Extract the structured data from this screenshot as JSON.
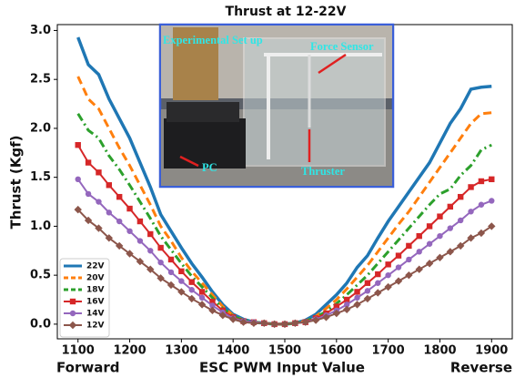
{
  "chart_data": {
    "type": "line",
    "title": "Thrust at 12-22V",
    "x_label": "ESC PWM Input Value",
    "y_label": "Thrust (Kgf)",
    "x_left_note": "Forward",
    "x_right_note": "Reverse",
    "inset_labels": [
      "Experimental Set up",
      "Force Sensor",
      "PC",
      "Thruster"
    ],
    "x": [
      1100,
      1120,
      1140,
      1160,
      1180,
      1200,
      1220,
      1240,
      1260,
      1280,
      1300,
      1320,
      1340,
      1360,
      1380,
      1400,
      1420,
      1440,
      1460,
      1480,
      1500,
      1520,
      1540,
      1560,
      1580,
      1600,
      1620,
      1640,
      1660,
      1680,
      1700,
      1720,
      1740,
      1760,
      1780,
      1800,
      1820,
      1840,
      1860,
      1880,
      1900
    ],
    "xlim": [
      1060,
      1940
    ],
    "ylim": [
      -0.15,
      3.06
    ],
    "xticks": [
      1100,
      1200,
      1300,
      1400,
      1500,
      1600,
      1700,
      1800,
      1900
    ],
    "yticks": [
      {
        "value": 0,
        "label": "0.0"
      },
      0.5,
      {
        "value": 1,
        "label": "1.0"
      },
      1.5,
      {
        "value": 2,
        "label": "2.0"
      },
      2.5,
      {
        "value": 3,
        "label": "3.0"
      }
    ],
    "grid": false,
    "legend": "lower left",
    "series": [
      {
        "name": "22V",
        "color": "#1f77b4",
        "dash": "solid",
        "marker": "none",
        "values": [
          2.93,
          2.65,
          2.55,
          2.3,
          2.1,
          1.9,
          1.65,
          1.4,
          1.12,
          0.95,
          0.78,
          0.62,
          0.48,
          0.33,
          0.2,
          0.1,
          0.05,
          0.02,
          0.01,
          0,
          0,
          0.01,
          0.04,
          0.1,
          0.2,
          0.3,
          0.42,
          0.58,
          0.7,
          0.88,
          1.05,
          1.2,
          1.35,
          1.5,
          1.65,
          1.85,
          2.05,
          2.2,
          2.4,
          2.42,
          2.43
        ]
      },
      {
        "name": "20V",
        "color": "#ff7f0e",
        "dash": "dashed",
        "marker": "none",
        "values": [
          2.53,
          2.3,
          2.2,
          2.0,
          1.8,
          1.62,
          1.42,
          1.22,
          1.0,
          0.85,
          0.68,
          0.54,
          0.42,
          0.3,
          0.18,
          0.09,
          0.04,
          0.02,
          0.01,
          0,
          0,
          0.01,
          0.03,
          0.08,
          0.16,
          0.25,
          0.36,
          0.48,
          0.6,
          0.74,
          0.88,
          1.02,
          1.15,
          1.3,
          1.45,
          1.6,
          1.75,
          1.9,
          2.05,
          2.15,
          2.16
        ]
      },
      {
        "name": "18V",
        "color": "#2ca02c",
        "dash": "dashdot",
        "marker": "none",
        "values": [
          2.15,
          1.98,
          1.9,
          1.72,
          1.58,
          1.42,
          1.25,
          1.08,
          0.9,
          0.76,
          0.62,
          0.49,
          0.38,
          0.27,
          0.16,
          0.08,
          0.04,
          0.02,
          0.01,
          0,
          0,
          0.01,
          0.03,
          0.07,
          0.13,
          0.21,
          0.3,
          0.4,
          0.5,
          0.62,
          0.74,
          0.86,
          0.98,
          1.1,
          1.22,
          1.33,
          1.38,
          1.52,
          1.62,
          1.78,
          1.83
        ]
      },
      {
        "name": "16V",
        "color": "#d62728",
        "dash": "solid",
        "marker": "square",
        "values": [
          1.83,
          1.65,
          1.55,
          1.42,
          1.3,
          1.18,
          1.05,
          0.92,
          0.78,
          0.66,
          0.54,
          0.43,
          0.33,
          0.23,
          0.14,
          0.07,
          0.03,
          0.02,
          0.01,
          0,
          0,
          0.01,
          0.02,
          0.06,
          0.11,
          0.18,
          0.25,
          0.33,
          0.42,
          0.51,
          0.61,
          0.7,
          0.8,
          0.9,
          1.0,
          1.1,
          1.2,
          1.3,
          1.4,
          1.46,
          1.48
        ]
      },
      {
        "name": "14V",
        "color": "#9467bd",
        "dash": "solid",
        "marker": "circle",
        "values": [
          1.48,
          1.33,
          1.25,
          1.14,
          1.05,
          0.95,
          0.85,
          0.75,
          0.63,
          0.53,
          0.44,
          0.35,
          0.27,
          0.19,
          0.12,
          0.06,
          0.03,
          0.02,
          0.01,
          0,
          0,
          0.01,
          0.02,
          0.05,
          0.09,
          0.14,
          0.2,
          0.27,
          0.34,
          0.42,
          0.5,
          0.58,
          0.66,
          0.74,
          0.82,
          0.9,
          0.98,
          1.06,
          1.15,
          1.22,
          1.26
        ]
      },
      {
        "name": "12V",
        "color": "#8c564b",
        "dash": "solid",
        "marker": "diamond",
        "values": [
          1.17,
          1.06,
          0.98,
          0.88,
          0.8,
          0.72,
          0.64,
          0.56,
          0.47,
          0.4,
          0.33,
          0.26,
          0.2,
          0.14,
          0.09,
          0.05,
          0.02,
          0.01,
          0.01,
          0,
          0,
          0.01,
          0.02,
          0.04,
          0.07,
          0.11,
          0.15,
          0.2,
          0.26,
          0.32,
          0.38,
          0.44,
          0.5,
          0.56,
          0.62,
          0.68,
          0.74,
          0.8,
          0.88,
          0.93,
          1.0
        ]
      }
    ]
  }
}
